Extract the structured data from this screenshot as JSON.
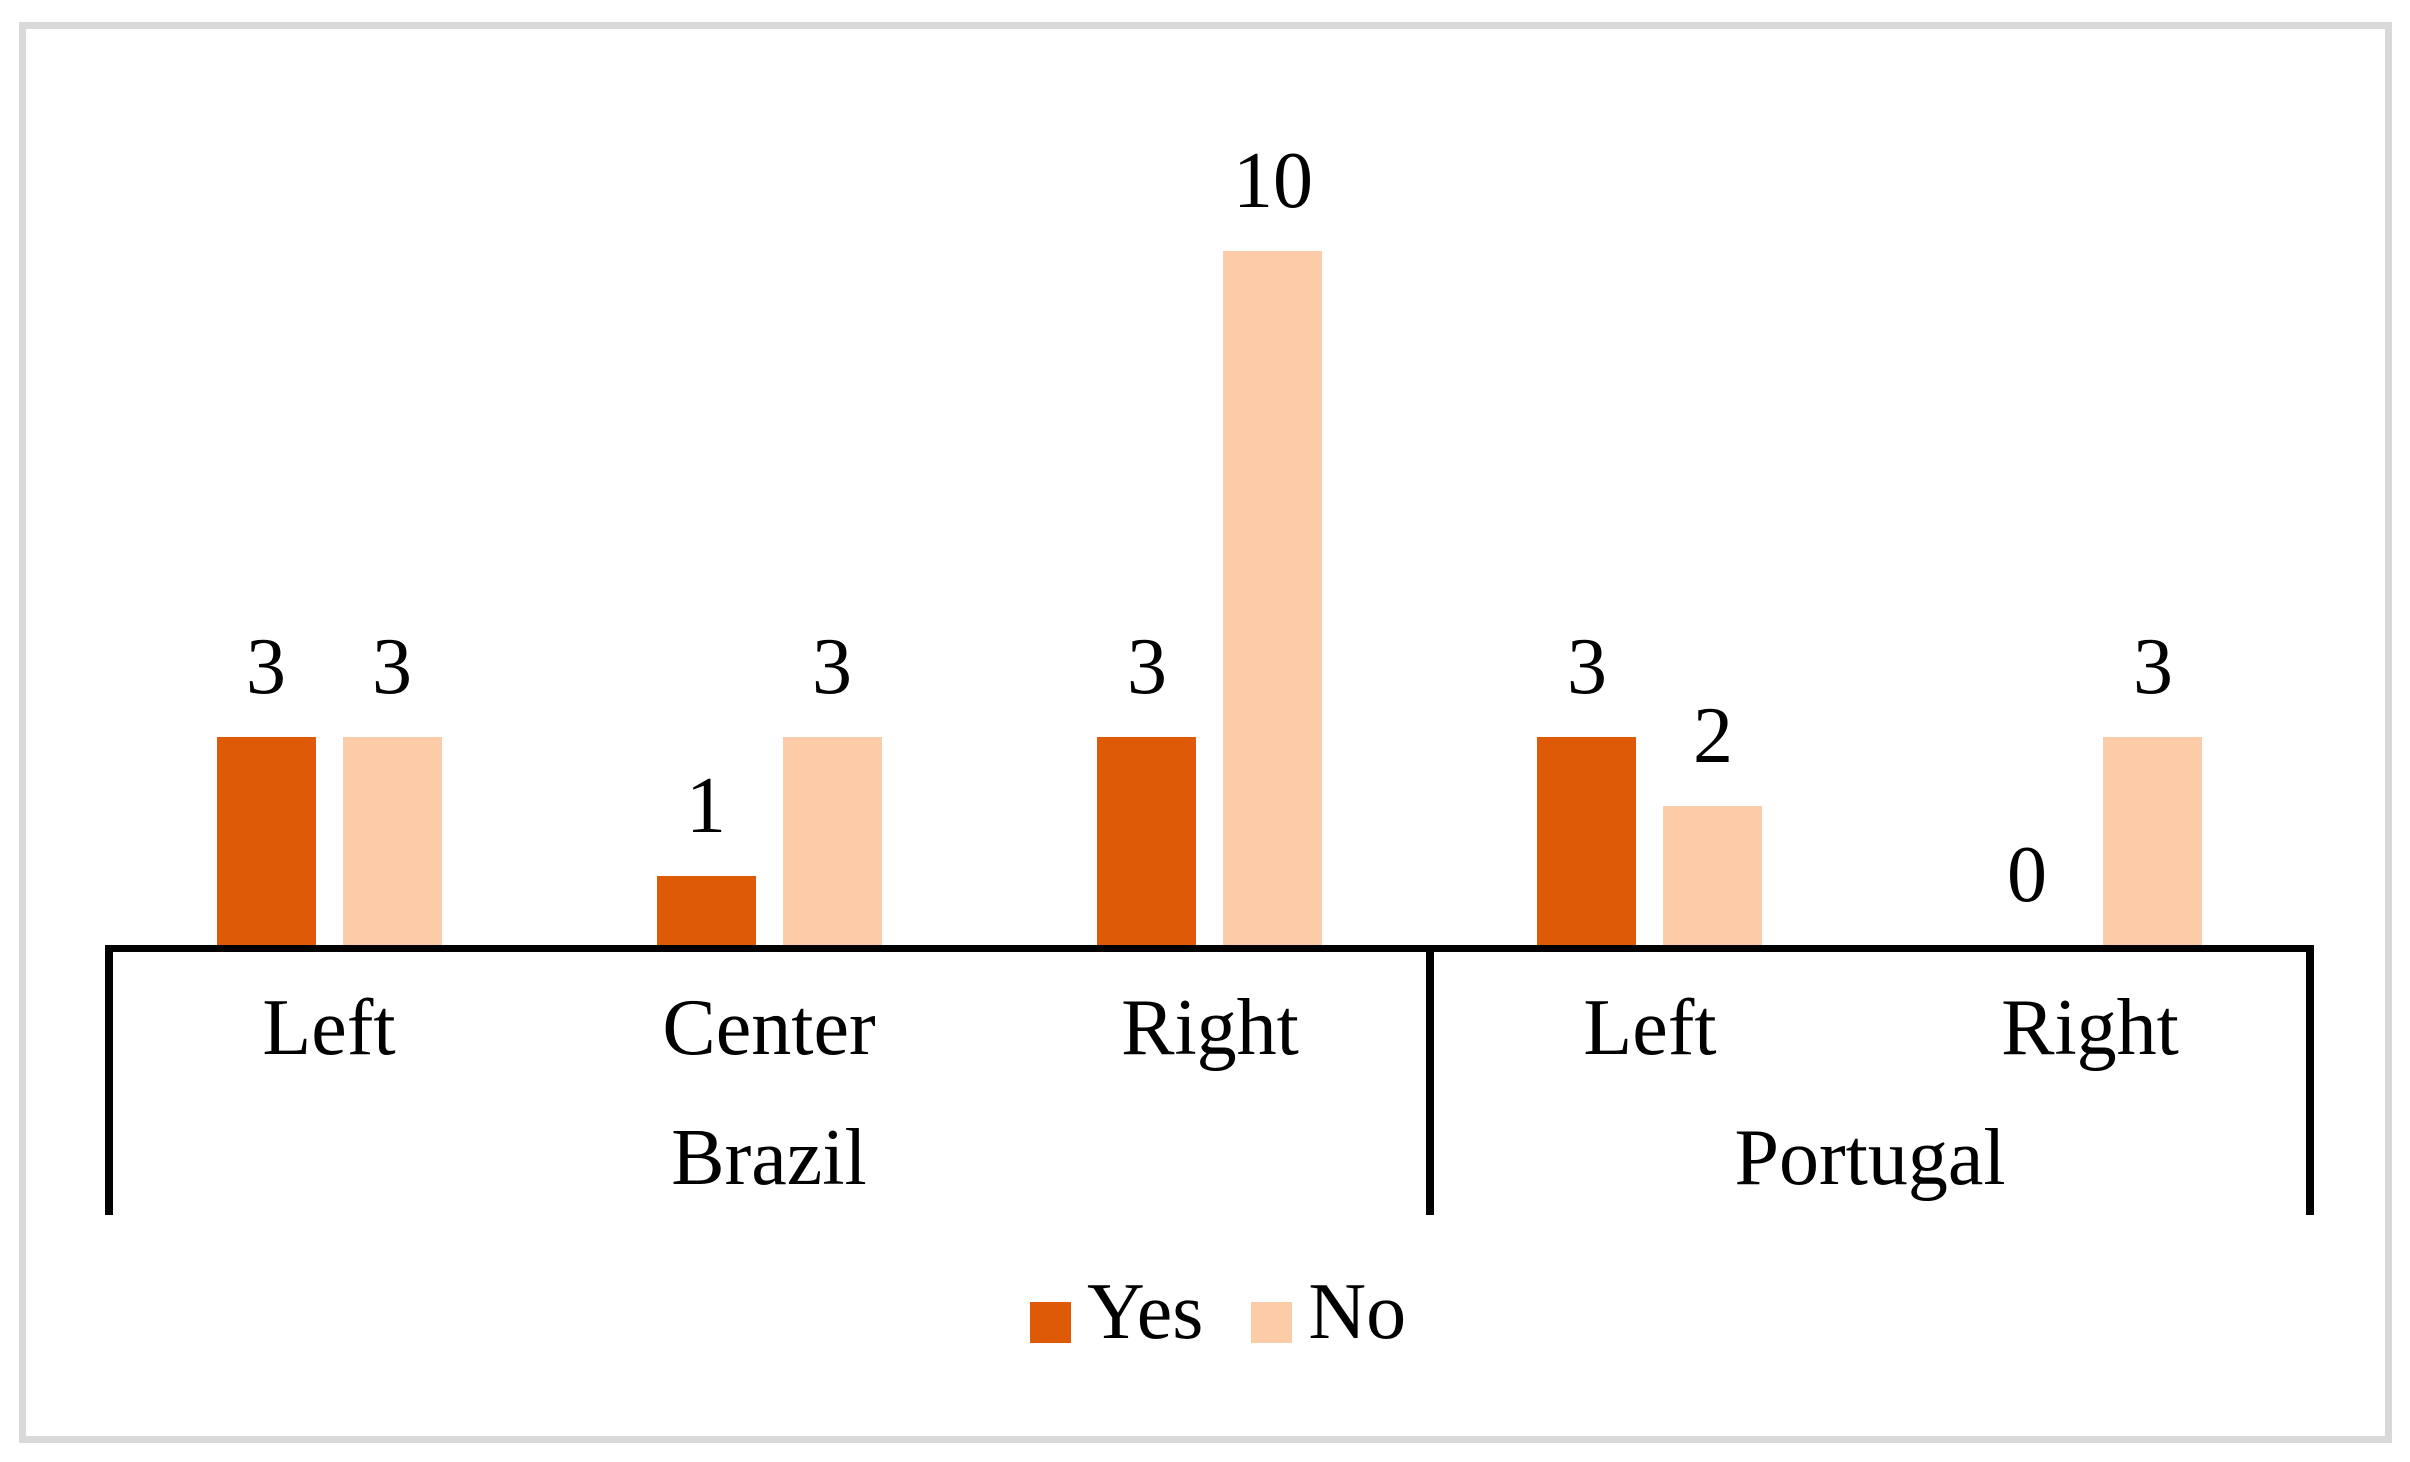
{
  "chart_data": {
    "type": "bar",
    "orientation": "vertical",
    "title": "",
    "groups": [
      {
        "label": "Brazil",
        "categories": [
          "Left",
          "Center",
          "Right"
        ]
      },
      {
        "label": "Portugal",
        "categories": [
          "Left",
          "Right"
        ]
      }
    ],
    "series": [
      {
        "name": "Yes",
        "color": "#DE5A07",
        "values": [
          3,
          1,
          3,
          3,
          0
        ]
      },
      {
        "name": "No",
        "color": "#FCCCA8",
        "values": [
          3,
          3,
          10,
          2,
          3
        ]
      }
    ],
    "data_labels_shown": true,
    "ylim": [
      0,
      10
    ],
    "y_axis_visible": false,
    "gridlines": false,
    "legend": {
      "position": "bottom"
    }
  },
  "colors": {
    "series_yes": "#DE5A07",
    "series_no": "#FCCCA8",
    "axis": "#000000",
    "text": "#000000",
    "frame_border": "#D9D9D9",
    "background": "#FFFFFF"
  }
}
